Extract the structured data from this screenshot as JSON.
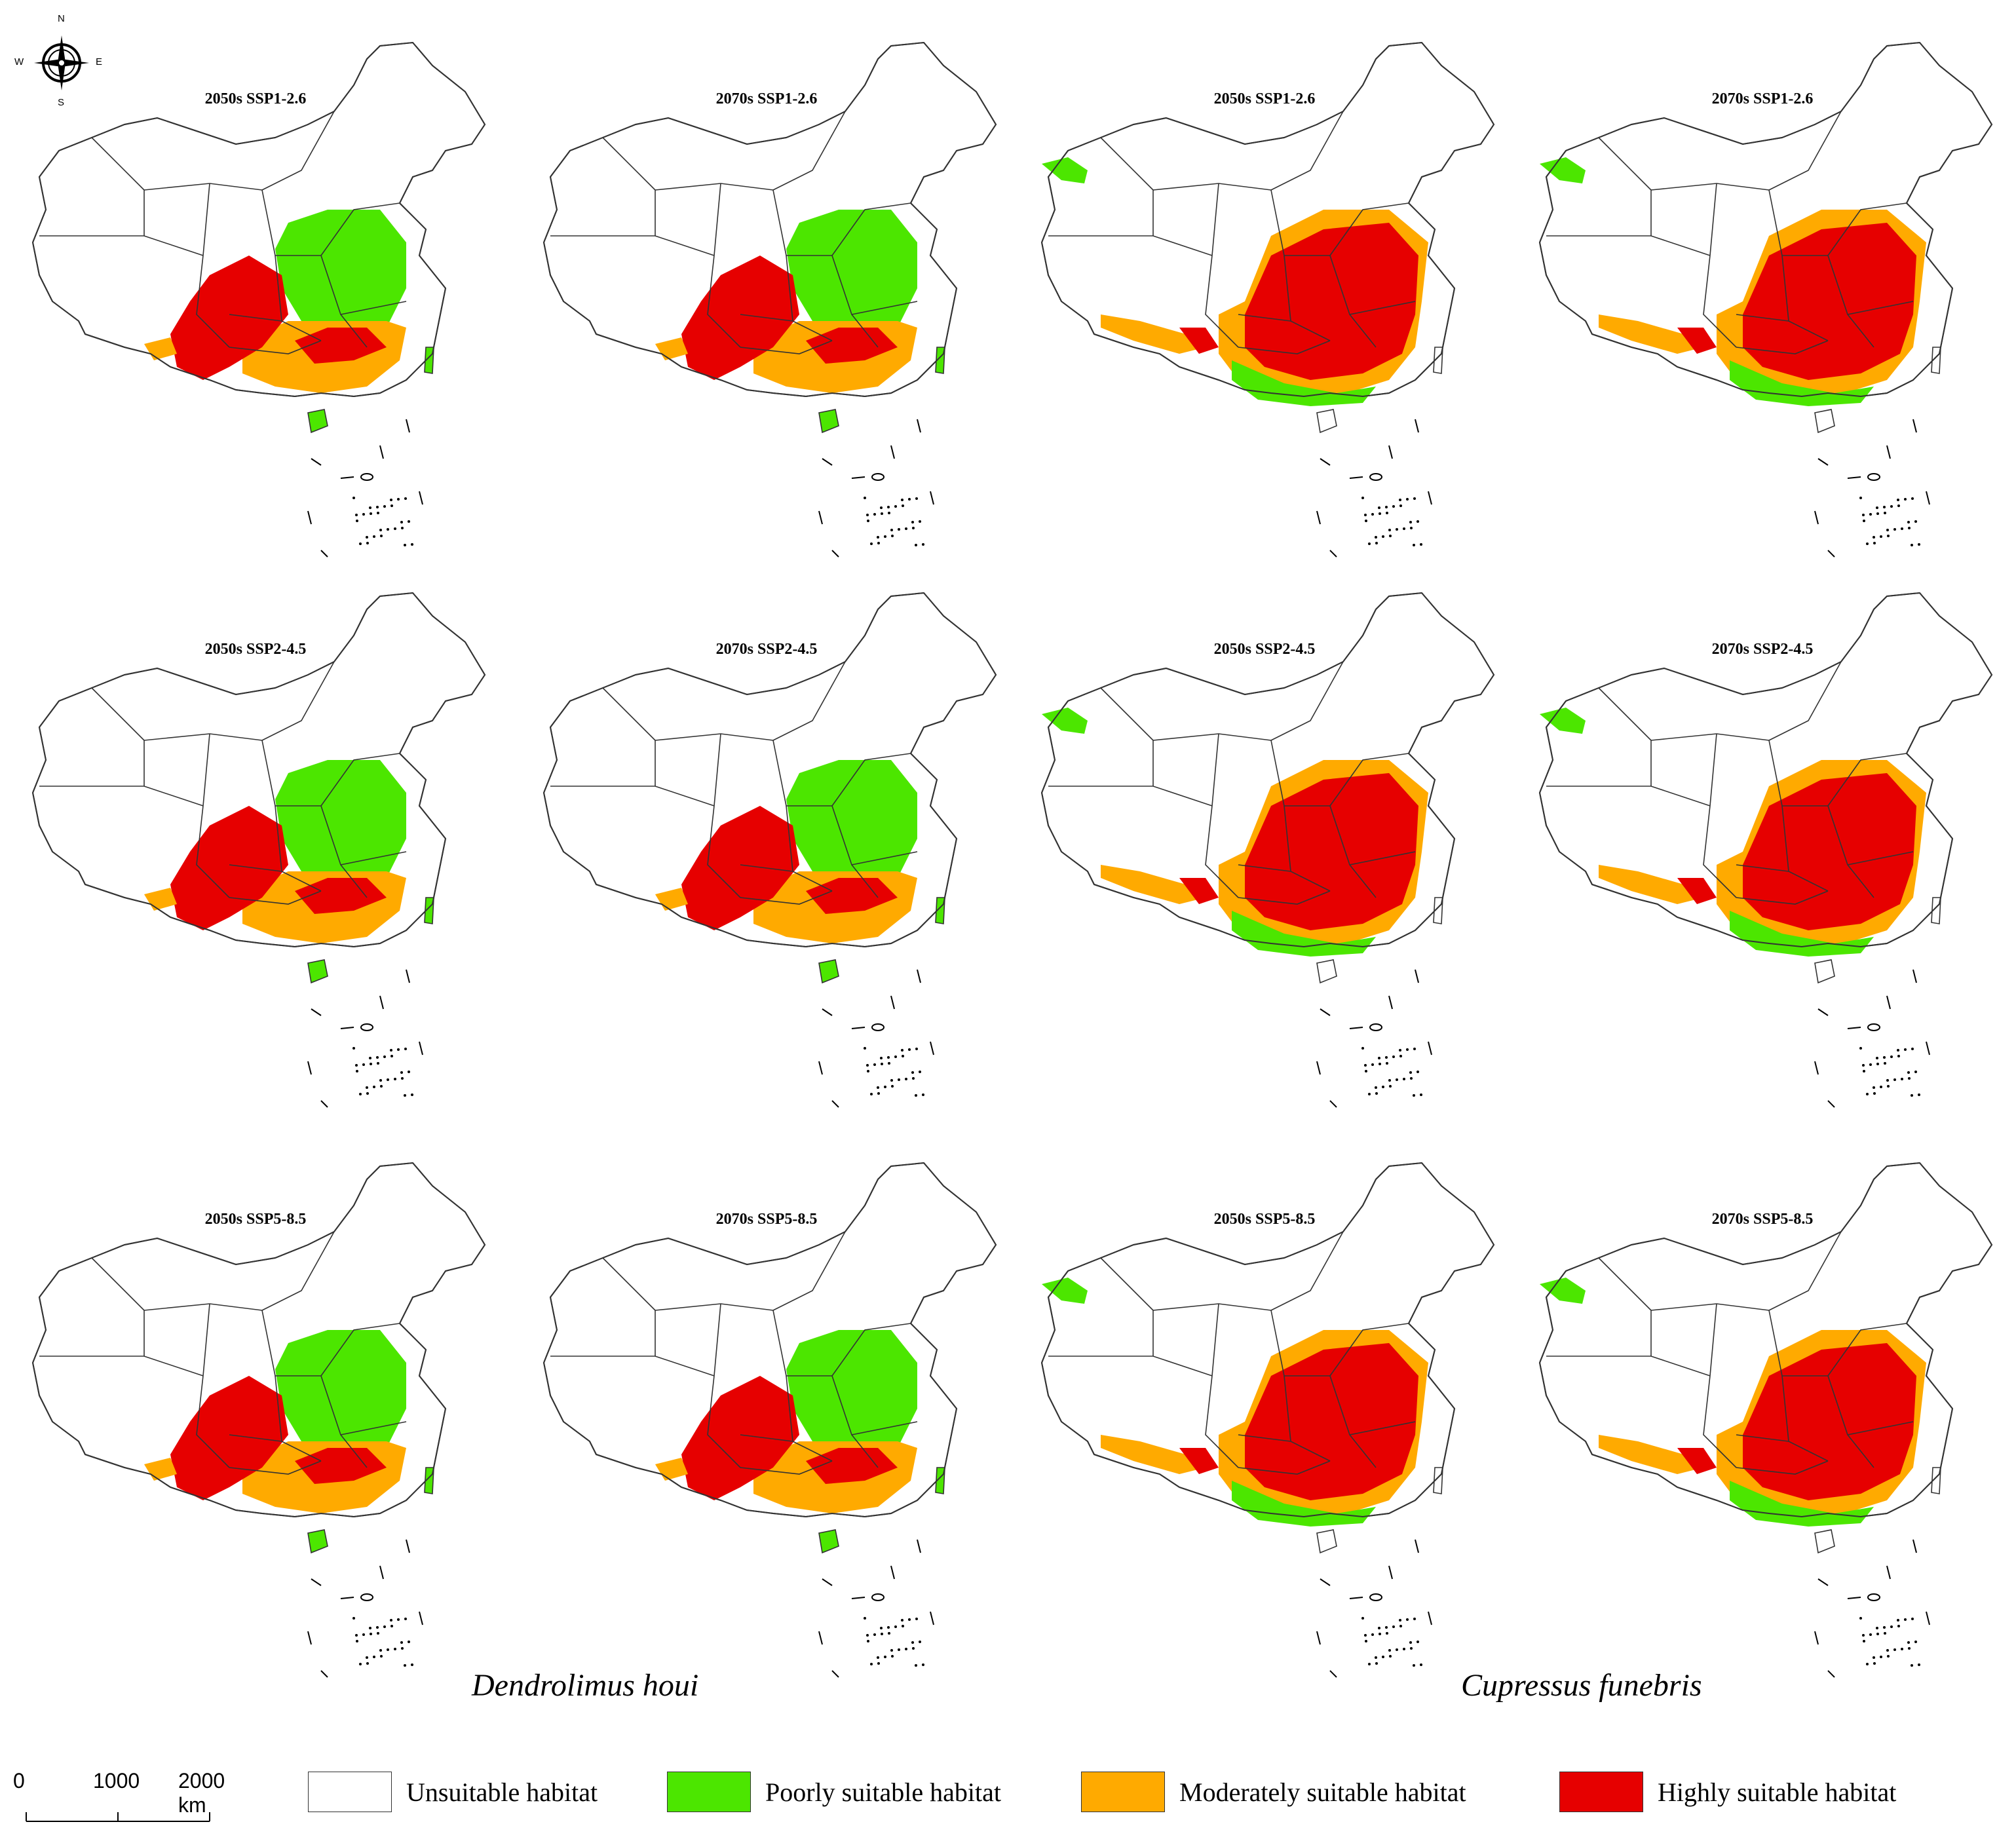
{
  "compass": {
    "n": "N",
    "s": "S",
    "e": "E",
    "w": "W"
  },
  "colors": {
    "unsuitable": "#ffffff",
    "poorly": "#4ce600",
    "moderately": "#ffaa00",
    "highly": "#e60000",
    "border": "#333333"
  },
  "species": [
    {
      "name": "Dendrolimus houi"
    },
    {
      "name": "Cupressus funebris"
    }
  ],
  "panels": [
    {
      "title": "2050s SSP1-2.6",
      "species": "dendrolimus"
    },
    {
      "title": "2070s SSP1-2.6",
      "species": "dendrolimus"
    },
    {
      "title": "2050s SSP1-2.6",
      "species": "cupressus"
    },
    {
      "title": "2070s SSP1-2.6",
      "species": "cupressus"
    },
    {
      "title": "2050s SSP2-4.5",
      "species": "dendrolimus"
    },
    {
      "title": "2070s SSP2-4.5",
      "species": "dendrolimus"
    },
    {
      "title": "2050s SSP2-4.5",
      "species": "cupressus"
    },
    {
      "title": "2070s SSP2-4.5",
      "species": "cupressus"
    },
    {
      "title": "2050s SSP5-8.5",
      "species": "dendrolimus"
    },
    {
      "title": "2070s SSP5-8.5",
      "species": "dendrolimus"
    },
    {
      "title": "2050s SSP5-8.5",
      "species": "cupressus"
    },
    {
      "title": "2070s SSP5-8.5",
      "species": "cupressus"
    }
  ],
  "scale_bar": {
    "labels": [
      "0",
      "1000",
      "2000 km"
    ]
  },
  "legend": [
    {
      "label": "Unsuitable habitat",
      "color": "#ffffff"
    },
    {
      "label": "Poorly suitable habitat",
      "color": "#4ce600"
    },
    {
      "label": "Moderately suitable habitat",
      "color": "#ffaa00"
    },
    {
      "label": "Highly suitable habitat",
      "color": "#e60000"
    }
  ]
}
